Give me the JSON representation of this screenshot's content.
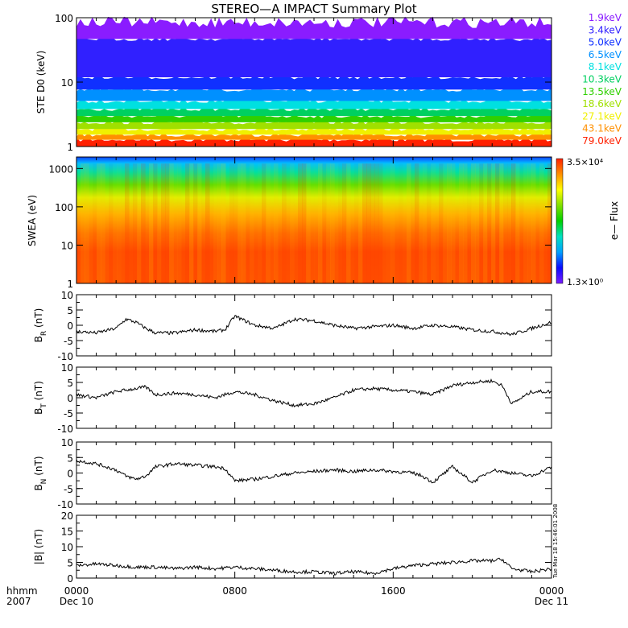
{
  "title": "STEREO—A IMPACT Summary Plot",
  "colorbar": {
    "label": "e— Flux",
    "max_label": "3.5×10⁴",
    "min_label": "1.3×10⁰",
    "stops": [
      "#7a1cff",
      "#0a0aff",
      "#00a0ff",
      "#00e0c0",
      "#00d000",
      "#80e000",
      "#ffff00",
      "#ff9000",
      "#ff2000"
    ]
  },
  "stamp": "Tue Mar 18 15:46:01 2008",
  "x_axis": {
    "row1_label": "hhmm",
    "row2_label": "2007",
    "ticks": [
      {
        "t": 0,
        "label": "0000",
        "date": "Dec 10"
      },
      {
        "t": 8,
        "label": "0800",
        "date": ""
      },
      {
        "t": 16,
        "label": "1600",
        "date": ""
      },
      {
        "t": 24,
        "label": "0000",
        "date": "Dec 11"
      }
    ]
  },
  "chart_data": [
    {
      "type": "line",
      "ylabel": "STE D0 (keV)",
      "ylim": [
        1,
        100
      ],
      "yscale": "log",
      "yticks": [
        1,
        10,
        100
      ],
      "yticklabels": [
        "1",
        "10",
        "100"
      ],
      "xlim": [
        0,
        24
      ],
      "series": [
        {
          "name": "1.9keV",
          "color": "#8a1cff",
          "level": 55
        },
        {
          "name": "3.4keV",
          "color": "#3020ff",
          "level": 14
        },
        {
          "name": "5.0keV",
          "color": "#1030ff",
          "level": 9
        },
        {
          "name": "6.5keV",
          "color": "#0090ff",
          "level": 6
        },
        {
          "name": "8.1keV",
          "color": "#00e0e0",
          "level": 4.5
        },
        {
          "name": "10.3keV",
          "color": "#00d060",
          "level": 3.5
        },
        {
          "name": "13.5keV",
          "color": "#30d000",
          "level": 2.8
        },
        {
          "name": "18.6keV",
          "color": "#a0e000",
          "level": 2.2
        },
        {
          "name": "27.1keV",
          "color": "#f0f000",
          "level": 1.8
        },
        {
          "name": "43.1keV",
          "color": "#ff9000",
          "level": 1.5
        },
        {
          "name": "79.0keV",
          "color": "#ff2000",
          "level": 1.3
        }
      ]
    },
    {
      "type": "heatmap",
      "ylabel": "SWEA (eV)",
      "ylim": [
        1,
        2000
      ],
      "yscale": "log",
      "yticks": [
        1,
        10,
        100,
        1000
      ],
      "yticklabels": [
        "1",
        "10",
        "100",
        "1000"
      ],
      "xlim": [
        0,
        24
      ]
    },
    {
      "type": "line",
      "ylabel": "B_R (nT)",
      "ylim": [
        -10,
        10
      ],
      "yticks": [
        -10,
        -5,
        0,
        5,
        10
      ],
      "xlim": [
        0,
        24
      ],
      "x": [
        0,
        1,
        2,
        2.5,
        3,
        3.5,
        4,
        5,
        6,
        7,
        7.5,
        8,
        9,
        10,
        11,
        12,
        13,
        14,
        15,
        16,
        17,
        18,
        19,
        20,
        21,
        22,
        23,
        24
      ],
      "y": [
        -2,
        -2.5,
        -1,
        2,
        1,
        -1,
        -2.5,
        -2.5,
        -1.5,
        -2,
        -1.5,
        3,
        0,
        -1,
        2,
        1.5,
        0,
        -1,
        -0.5,
        0,
        -1,
        0,
        -0.5,
        -1.5,
        -2,
        -3,
        -1,
        1
      ]
    },
    {
      "type": "line",
      "ylabel": "B_T (nT)",
      "ylim": [
        -10,
        10
      ],
      "yticks": [
        -10,
        -5,
        0,
        5,
        10
      ],
      "xlim": [
        0,
        24
      ],
      "x": [
        0,
        1,
        2,
        3,
        3.5,
        4,
        5,
        6,
        7,
        8,
        9,
        10,
        11,
        12,
        13,
        14,
        15,
        16,
        17,
        18,
        19,
        20,
        21,
        21.5,
        22,
        23,
        24
      ],
      "y": [
        1,
        0,
        2,
        3,
        3.5,
        1,
        1.5,
        1,
        0,
        2,
        1,
        -1,
        -2.5,
        -2,
        0,
        2.5,
        3,
        2.5,
        2,
        1,
        4,
        5,
        5.5,
        4,
        -2,
        2,
        2
      ]
    },
    {
      "type": "line",
      "ylabel": "B_N (nT)",
      "ylim": [
        -10,
        10
      ],
      "yticks": [
        -10,
        -5,
        0,
        5,
        10
      ],
      "xlim": [
        0,
        24
      ],
      "x": [
        0,
        1,
        2,
        2.5,
        3,
        3.5,
        4,
        5,
        6,
        7,
        7.5,
        8,
        9,
        10,
        11,
        12,
        13,
        14,
        15,
        16,
        17,
        17.5,
        18,
        19,
        20,
        21,
        22,
        23,
        24
      ],
      "y": [
        4,
        3,
        1,
        -1,
        -2,
        -1,
        2,
        3,
        2.5,
        2,
        1.5,
        -2.5,
        -2,
        -1,
        0,
        0.5,
        1,
        0.5,
        1,
        0.5,
        0,
        -1,
        -3,
        2,
        -3,
        1,
        0,
        -1,
        2
      ]
    },
    {
      "type": "line",
      "ylabel": "|B| (nT)",
      "ylim": [
        0,
        20
      ],
      "yticks": [
        0,
        5,
        10,
        15,
        20
      ],
      "xlim": [
        0,
        24
      ],
      "x": [
        0,
        1,
        2,
        3,
        4,
        5,
        6,
        7,
        8,
        9,
        10,
        11,
        12,
        13,
        14,
        15,
        16,
        17,
        18,
        19,
        20,
        21,
        21.5,
        22,
        23,
        24
      ],
      "y": [
        4,
        4.5,
        4,
        3.5,
        3.5,
        3,
        3.5,
        3,
        3.5,
        3,
        2.5,
        2,
        2,
        1.5,
        2,
        1.5,
        3,
        4,
        4.5,
        5,
        5.5,
        5.5,
        6,
        3,
        2,
        3
      ]
    }
  ]
}
